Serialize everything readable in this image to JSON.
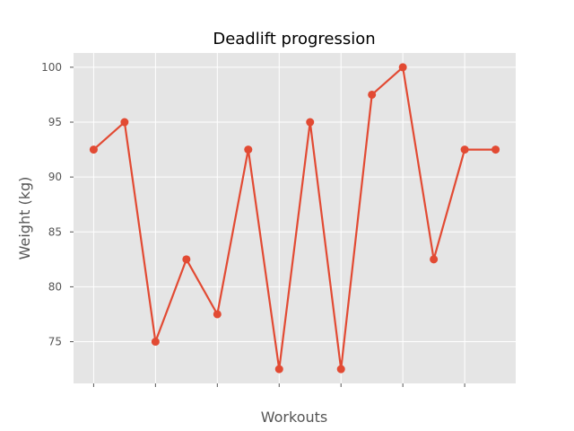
{
  "chart_data": {
    "type": "line",
    "title": "Deadlift progression",
    "xlabel": "Workouts",
    "ylabel": "Weight (kg)",
    "x": [
      0,
      1,
      2,
      3,
      4,
      5,
      6,
      7,
      8,
      9,
      10,
      11,
      12,
      13
    ],
    "series": [
      {
        "values": [
          92.5,
          95,
          75,
          82.5,
          77.5,
          92.5,
          72.5,
          95,
          72.5,
          97.5,
          100,
          82.5,
          92.5,
          92.5
        ]
      }
    ],
    "ylim": [
      71.2,
      101.3
    ],
    "xlim": [
      -0.65,
      13.65
    ],
    "yticks": [
      75,
      80,
      85,
      90,
      95,
      100
    ],
    "xticks": [
      0,
      2,
      4,
      6,
      8,
      10,
      12
    ],
    "show_x_tick_labels": false,
    "grid": true,
    "legend": "none",
    "colors": {
      "line": "#E24A33",
      "plot_background": "#E5E5E5",
      "grid": "#FFFFFF",
      "tick": "#555555"
    }
  }
}
